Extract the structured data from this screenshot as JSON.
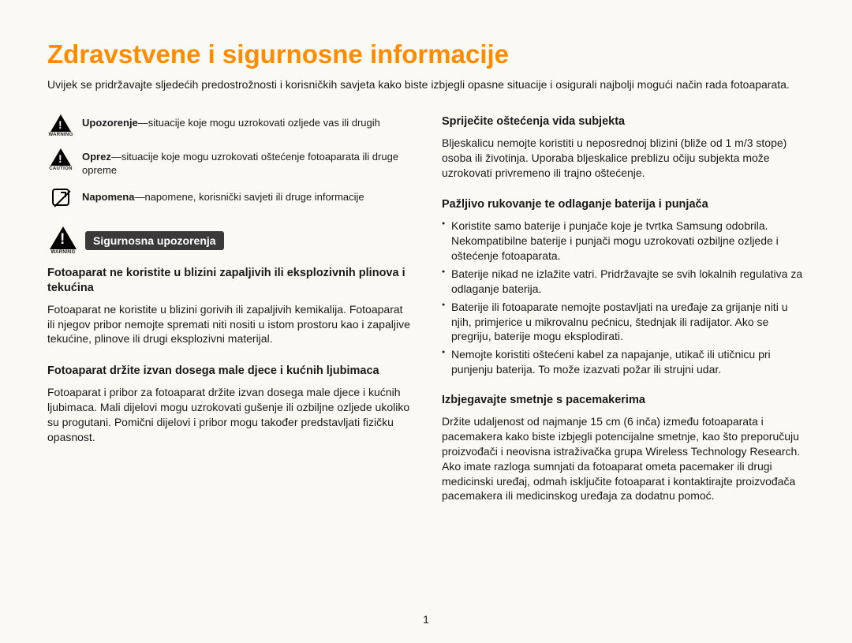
{
  "title": "Zdravstvene i sigurnosne informacije",
  "intro": "Uvijek se pridržavajte sljedećih predostrožnosti i korisničkih savjeta kako biste izbjegli opasne situacije i osigurali najbolji mogući način rada fotoaparata.",
  "legend": {
    "warning": {
      "label": "Upozorenje",
      "text": "—situacije koje mogu uzrokovati ozljede vas ili drugih",
      "sub": "WARNING"
    },
    "caution": {
      "label": "Oprez",
      "text": "—situacije koje mogu uzrokovati oštećenje fotoaparata ili druge opreme",
      "sub": "CAUTION"
    },
    "note": {
      "label": "Napomena",
      "text": "—napomene, korisnički savjeti ili druge informacije"
    }
  },
  "banner": {
    "label": "Sigurnosna upozorenja",
    "sub": "WARNING"
  },
  "left": {
    "h1": "Fotoaparat ne koristite u blizini zapaljivih ili eksplozivnih plinova i tekućina",
    "p1": "Fotoaparat ne koristite u blizini gorivih ili zapaljivih kemikalija. Fotoaparat ili njegov pribor nemojte spremati niti nositi u istom prostoru kao i zapaljive tekućine, plinove ili drugi eksplozivni materijal.",
    "h2": "Fotoaparat držite izvan dosega male djece i kućnih ljubimaca",
    "p2": "Fotoaparat i pribor za fotoaparat držite izvan dosega male djece i kućnih ljubimaca. Mali dijelovi mogu uzrokovati gušenje ili ozbiljne ozljede ukoliko su progutani. Pomični dijelovi i pribor mogu također predstavljati fizičku opasnost."
  },
  "right": {
    "h1": "Spriječite oštećenja vida subjekta",
    "p1": "Bljeskalicu nemojte koristiti u neposrednoj blizini (bliže od 1 m/3 stope) osoba ili životinja. Uporaba bljeskalice preblizu očiju subjekta može uzrokovati privremeno ili trajno oštećenje.",
    "h2": "Pažljivo rukovanje te odlaganje baterija i punjača",
    "b1": "Koristite samo baterije i punjače koje je tvrtka Samsung odobrila. Nekompatibilne baterije i punjači mogu uzrokovati ozbiljne ozljede i oštećenje fotoaparata.",
    "b2": "Baterije nikad ne izlažite vatri. Pridržavajte se svih lokalnih regulativa za odlaganje baterija.",
    "b3": "Baterije ili fotoaparate nemojte postavljati na uređaje za grijanje niti u njih, primjerice u mikrovalnu pećnicu, štednjak ili radijator. Ako se pregriju, baterije mogu eksplodirati.",
    "b4": "Nemojte koristiti oštećeni kabel za napajanje, utikač ili utičnicu pri punjenju baterija. To može izazvati požar ili strujni udar.",
    "h3": "Izbjegavajte smetnje s pacemakerima",
    "p3": "Držite udaljenost od najmanje 15 cm (6 inča) između fotoaparata i pacemakera kako biste izbjegli potencijalne smetnje, kao što preporučuju proizvođači i neovisna istraživačka grupa Wireless Technology Research. Ako imate razloga sumnjati da fotoaparat ometa pacemaker ili drugi medicinski uređaj, odmah isključite fotoaparat i kontaktirajte proizvođača pacemakera ili medicinskog uređaja za dodatnu pomoć."
  },
  "page": "1"
}
